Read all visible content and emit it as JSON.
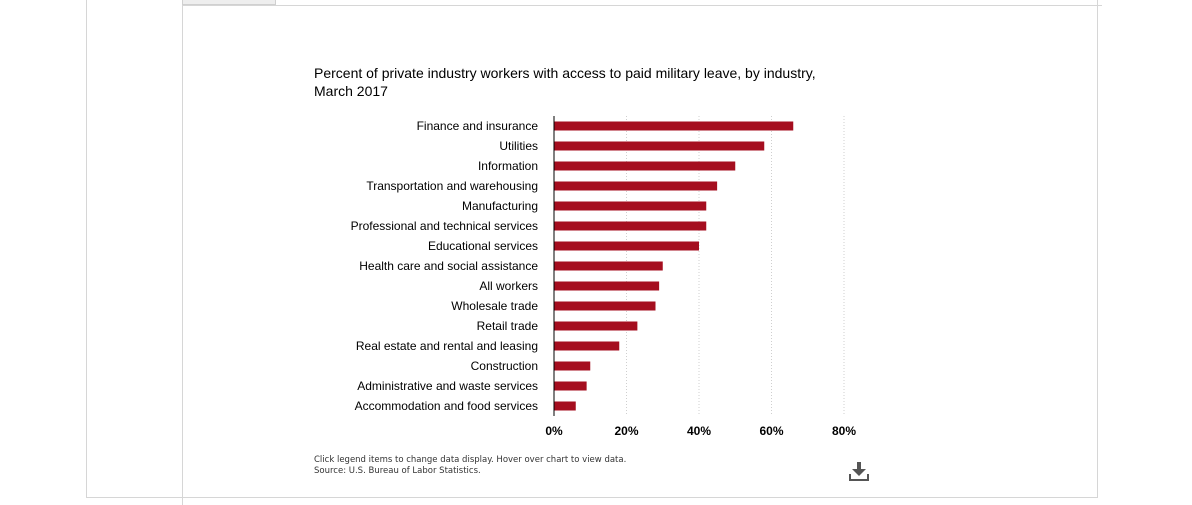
{
  "chart_data": {
    "type": "bar",
    "orientation": "horizontal",
    "title": "Percent of private industry workers with access to paid military leave, by industry, March 2017",
    "categories": [
      "Finance and insurance",
      "Utilities",
      "Information",
      "Transportation and warehousing",
      "Manufacturing",
      "Professional and technical services",
      "Educational services",
      "Health care and social assistance",
      "All workers",
      "Wholesale trade",
      "Retail trade",
      "Real estate and rental and leasing",
      "Construction",
      "Administrative and waste services",
      "Accommodation and food services"
    ],
    "values": [
      66,
      58,
      50,
      45,
      42,
      42,
      40,
      30,
      29,
      28,
      23,
      18,
      10,
      9,
      6
    ],
    "xlabel": "",
    "ylabel": "",
    "xlim": [
      0,
      80
    ],
    "ticks": [
      "0%",
      "20%",
      "40%",
      "60%",
      "80%"
    ],
    "tick_values": [
      0,
      20,
      40,
      60,
      80
    ],
    "bar_color": "#a50e1f",
    "grid": true,
    "legend": "none"
  },
  "footnote": {
    "line1": "Click legend items to change data display. Hover over chart to view data.",
    "line2": "Source: U.S. Bureau of Labor Statistics."
  },
  "icons": {
    "download": "download-icon"
  }
}
